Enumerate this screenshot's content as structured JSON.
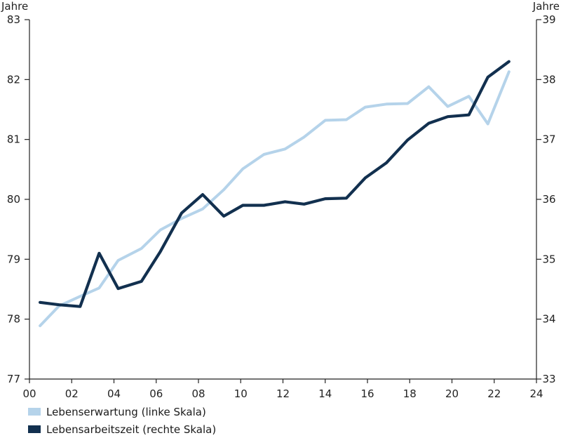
{
  "chart_data": {
    "type": "line",
    "x": [
      0.5,
      1.4,
      2.4,
      3.3,
      4.2,
      5.3,
      6.2,
      7.2,
      8.2,
      9.2,
      10.1,
      11.1,
      12.1,
      13.0,
      14.0,
      15.0,
      15.9,
      16.9,
      17.9,
      18.9,
      19.8,
      20.8,
      21.7,
      22.7
    ],
    "series": [
      {
        "name": "Lebenserwartung (linke Skala)",
        "axis": "left",
        "color": "#b5d3ea",
        "values": [
          77.89,
          78.22,
          78.38,
          78.52,
          78.98,
          79.18,
          79.49,
          79.68,
          79.84,
          80.16,
          80.51,
          80.75,
          80.84,
          81.04,
          81.32,
          81.33,
          81.54,
          81.59,
          81.6,
          81.88,
          81.55,
          81.72,
          81.26,
          82.13
        ]
      },
      {
        "name": "Lebensarbeitszeit (rechte Skala)",
        "axis": "right",
        "color": "#12304f",
        "values": [
          34.28,
          34.24,
          34.21,
          35.1,
          34.51,
          34.63,
          35.13,
          35.77,
          36.08,
          35.72,
          35.9,
          35.9,
          35.96,
          35.92,
          36.01,
          36.02,
          36.36,
          36.61,
          36.99,
          37.27,
          37.38,
          37.41,
          38.04,
          38.3
        ]
      }
    ],
    "x_ticks": [
      "00",
      "02",
      "04",
      "06",
      "08",
      "10",
      "12",
      "14",
      "16",
      "18",
      "20",
      "22",
      "24"
    ],
    "xlim": [
      0,
      24
    ],
    "ylim_left": [
      77,
      83
    ],
    "ylim_right": [
      33,
      39
    ],
    "y_ticks_left": [
      "77",
      "78",
      "79",
      "80",
      "81",
      "82",
      "83"
    ],
    "y_ticks_right": [
      "33",
      "34",
      "35",
      "36",
      "37",
      "38",
      "39"
    ],
    "ylabel_left": "Jahre",
    "ylabel_right": "Jahre",
    "grid": false,
    "legend_position": "bottom-left"
  }
}
